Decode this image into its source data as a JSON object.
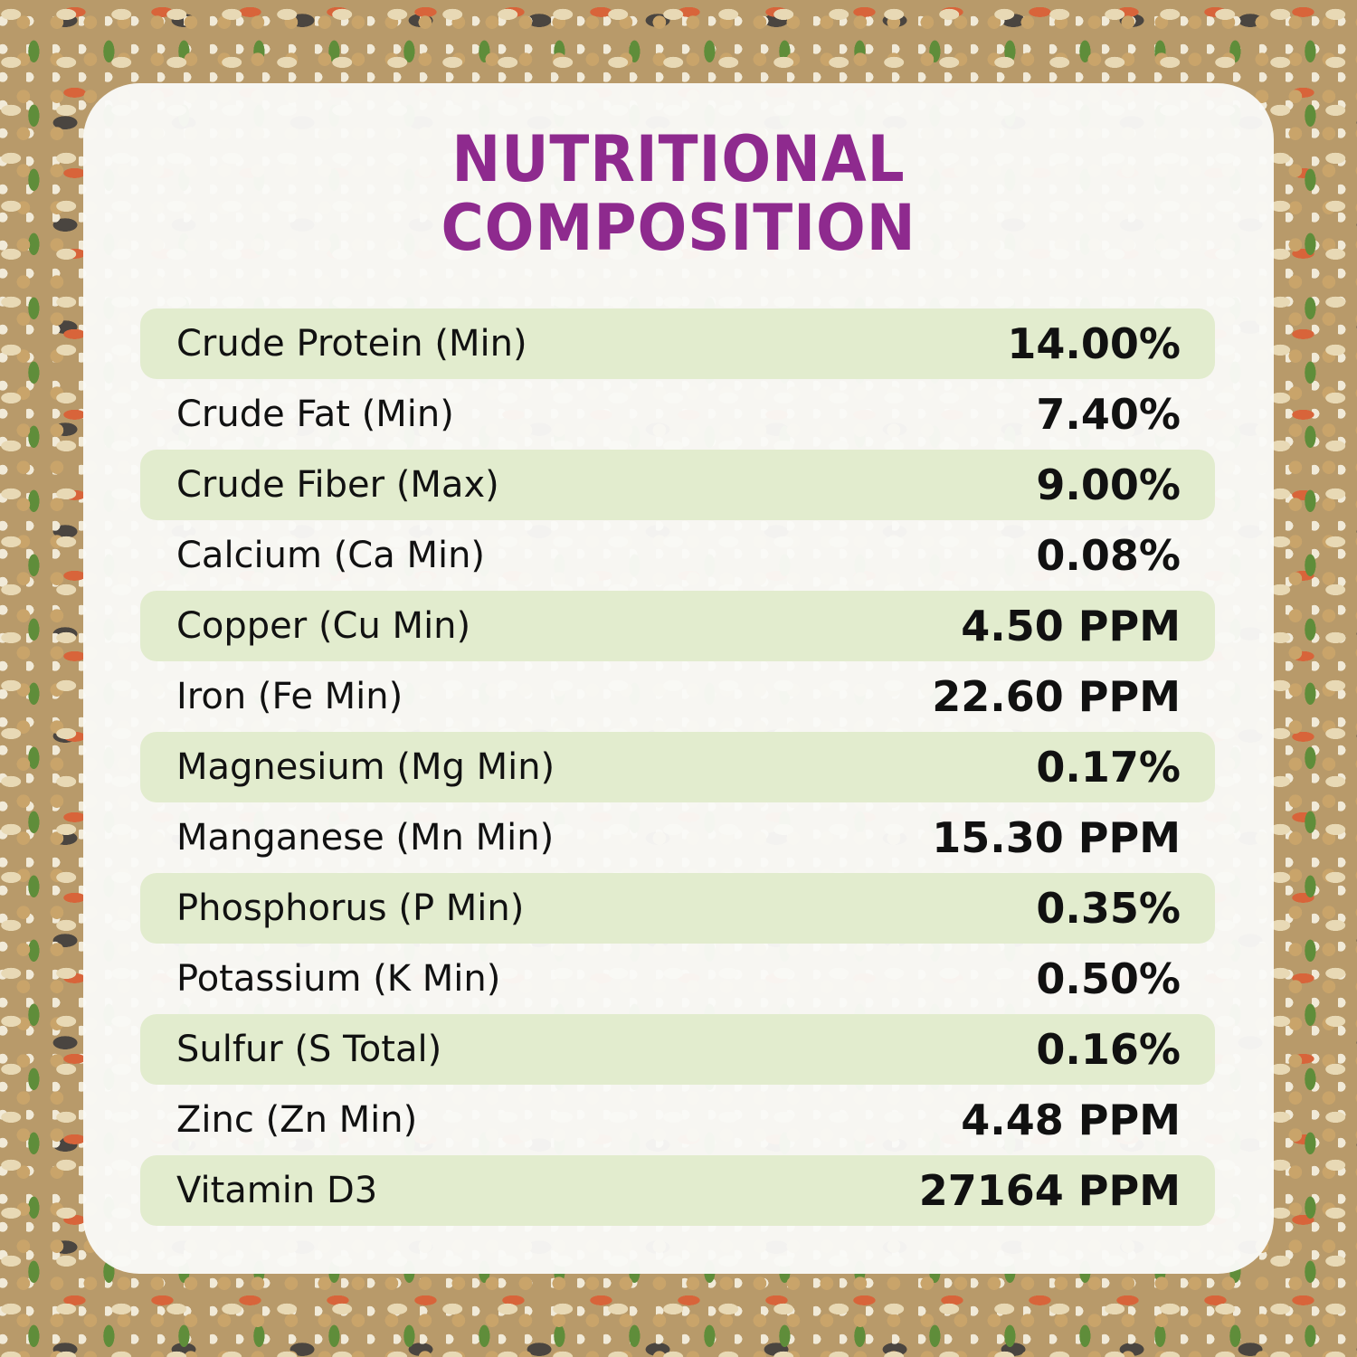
{
  "title_line1": "NUTRITIONAL",
  "title_line2": "COMPOSITION",
  "colors": {
    "title": "#8e2a8e",
    "row_highlight": "#e2ecce"
  },
  "rows": [
    {
      "label": "Crude Protein (Min)",
      "value": "14.00%"
    },
    {
      "label": "Crude Fat (Min)",
      "value": "7.40%"
    },
    {
      "label": "Crude Fiber (Max)",
      "value": "9.00%"
    },
    {
      "label": "Calcium (Ca Min)",
      "value": "0.08%"
    },
    {
      "label": "Copper (Cu Min)",
      "value": "4.50 PPM"
    },
    {
      "label": "Iron (Fe Min)",
      "value": "22.60 PPM"
    },
    {
      "label": "Magnesium (Mg Min)",
      "value": "0.17%"
    },
    {
      "label": "Manganese (Mn Min)",
      "value": "15.30 PPM"
    },
    {
      "label": "Phosphorus (P Min)",
      "value": "0.35%"
    },
    {
      "label": "Potassium (K Min)",
      "value": "0.50%"
    },
    {
      "label": "Sulfur (S Total)",
      "value": "0.16%"
    },
    {
      "label": "Zinc (Zn Min)",
      "value": "4.48 PPM"
    },
    {
      "label": "Vitamin D3",
      "value": "27164 PPM"
    }
  ]
}
